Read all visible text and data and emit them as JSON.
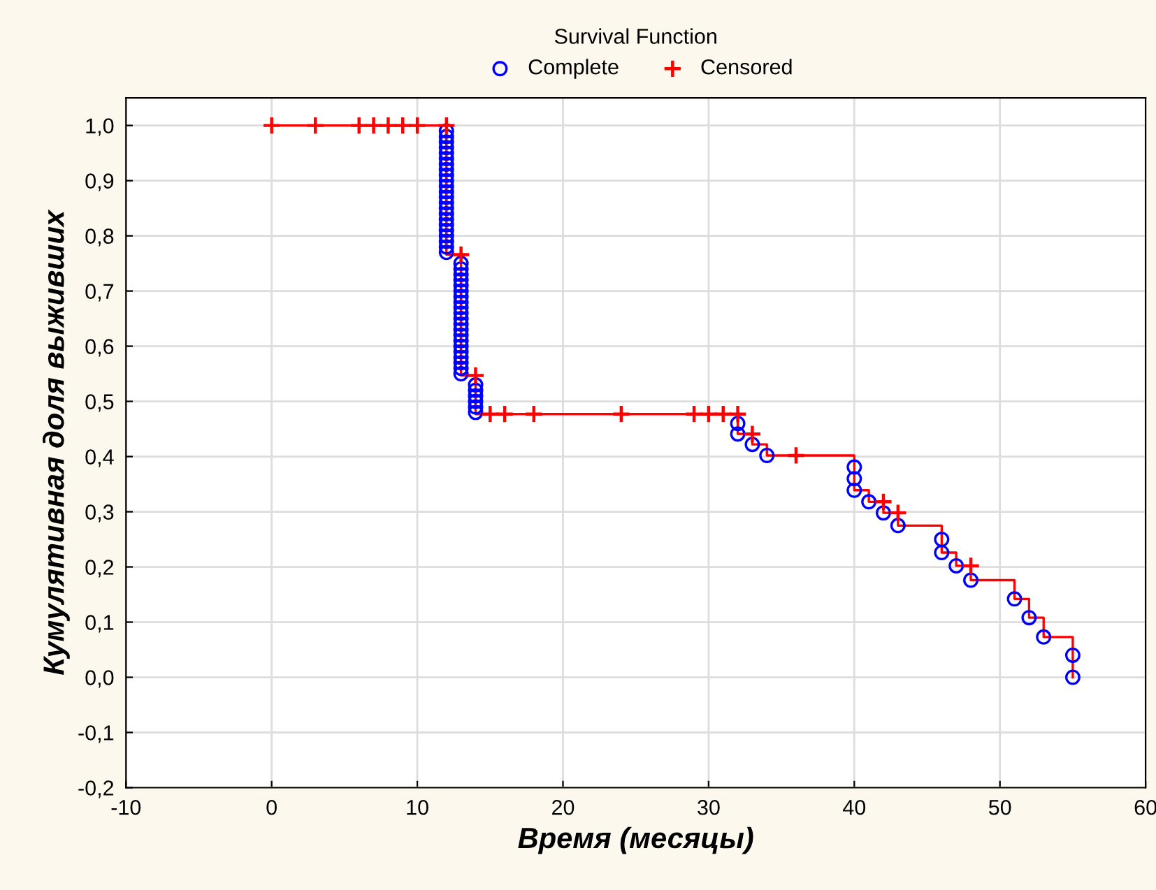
{
  "chart_data": {
    "type": "step",
    "legend_title": "Survival Function",
    "xlabel": "Время (месяцы)",
    "ylabel": "Кумулятивная доля выживших",
    "xlim": [
      -10,
      60
    ],
    "xticks": [
      -10,
      0,
      10,
      20,
      30,
      40,
      50,
      60
    ],
    "ylim": [
      -0.2,
      1.05
    ],
    "yticks": [
      {
        "value": -0.2,
        "label": "-0,2"
      },
      {
        "value": -0.1,
        "label": "-0,1"
      },
      {
        "value": 0,
        "label": "0,0"
      },
      {
        "value": 0.1,
        "label": "0,1"
      },
      {
        "value": 0.2,
        "label": "0,2"
      },
      {
        "value": 0.3,
        "label": "0,3"
      },
      {
        "value": 0.4,
        "label": "0,4"
      },
      {
        "value": 0.5,
        "label": "0,5"
      },
      {
        "value": 0.6,
        "label": "0,6"
      },
      {
        "value": 0.7,
        "label": "0,7"
      },
      {
        "value": 0.8,
        "label": "0,8"
      },
      {
        "value": 0.9,
        "label": "0,9"
      },
      {
        "value": 1.0,
        "label": "1,0"
      }
    ],
    "grid": true,
    "legend": "top",
    "series": [
      {
        "color": "#ff0000",
        "marker": "none",
        "x": [
          0,
          12,
          13,
          14,
          32,
          33,
          34,
          40,
          41,
          42,
          43,
          46,
          47,
          48,
          51,
          52,
          53,
          55
        ],
        "values": [
          1.0,
          0.766,
          0.547,
          0.477,
          0.441,
          0.422,
          0.402,
          0.339,
          0.318,
          0.298,
          0.275,
          0.226,
          0.202,
          0.176,
          0.142,
          0.108,
          0.073,
          0.0
        ]
      },
      {
        "type": "scatter",
        "name": "Complete",
        "color": "#0000ff",
        "marker": "circle",
        "x": [
          12,
          12,
          12,
          12,
          12,
          12,
          12,
          12,
          12,
          12,
          12,
          12,
          12,
          12,
          12,
          12,
          12,
          12,
          12,
          12,
          12,
          12,
          12,
          13,
          13,
          13,
          13,
          13,
          13,
          13,
          13,
          13,
          13,
          13,
          13,
          13,
          13,
          13,
          13,
          13,
          13,
          13,
          13,
          13,
          14,
          14,
          14,
          14,
          14,
          14,
          32,
          32,
          33,
          34,
          40,
          40,
          40,
          41,
          42,
          43,
          46,
          46,
          47,
          48,
          51,
          52,
          53,
          55,
          55
        ],
        "values": [
          0.99,
          0.98,
          0.97,
          0.96,
          0.95,
          0.94,
          0.93,
          0.92,
          0.91,
          0.9,
          0.89,
          0.88,
          0.87,
          0.86,
          0.85,
          0.84,
          0.83,
          0.82,
          0.81,
          0.8,
          0.79,
          0.78,
          0.77,
          0.75,
          0.74,
          0.73,
          0.72,
          0.71,
          0.7,
          0.69,
          0.68,
          0.67,
          0.66,
          0.65,
          0.64,
          0.63,
          0.62,
          0.61,
          0.6,
          0.59,
          0.58,
          0.57,
          0.56,
          0.55,
          0.53,
          0.52,
          0.51,
          0.5,
          0.49,
          0.48,
          0.46,
          0.441,
          0.422,
          0.402,
          0.381,
          0.36,
          0.339,
          0.318,
          0.298,
          0.275,
          0.25,
          0.226,
          0.202,
          0.176,
          0.142,
          0.108,
          0.073,
          0.04,
          0.0
        ]
      },
      {
        "type": "scatter",
        "name": "Censored",
        "color": "#ff0000",
        "marker": "cross",
        "x": [
          0,
          3,
          6,
          7,
          8,
          9,
          10,
          12,
          13,
          14,
          15,
          16,
          18,
          24,
          29,
          30,
          31,
          32,
          33,
          36,
          42,
          43,
          48
        ],
        "values": [
          1.0,
          1.0,
          1.0,
          1.0,
          1.0,
          1.0,
          1.0,
          1.0,
          0.766,
          0.547,
          0.477,
          0.477,
          0.477,
          0.477,
          0.477,
          0.477,
          0.477,
          0.477,
          0.441,
          0.402,
          0.318,
          0.298,
          0.202
        ]
      }
    ]
  }
}
